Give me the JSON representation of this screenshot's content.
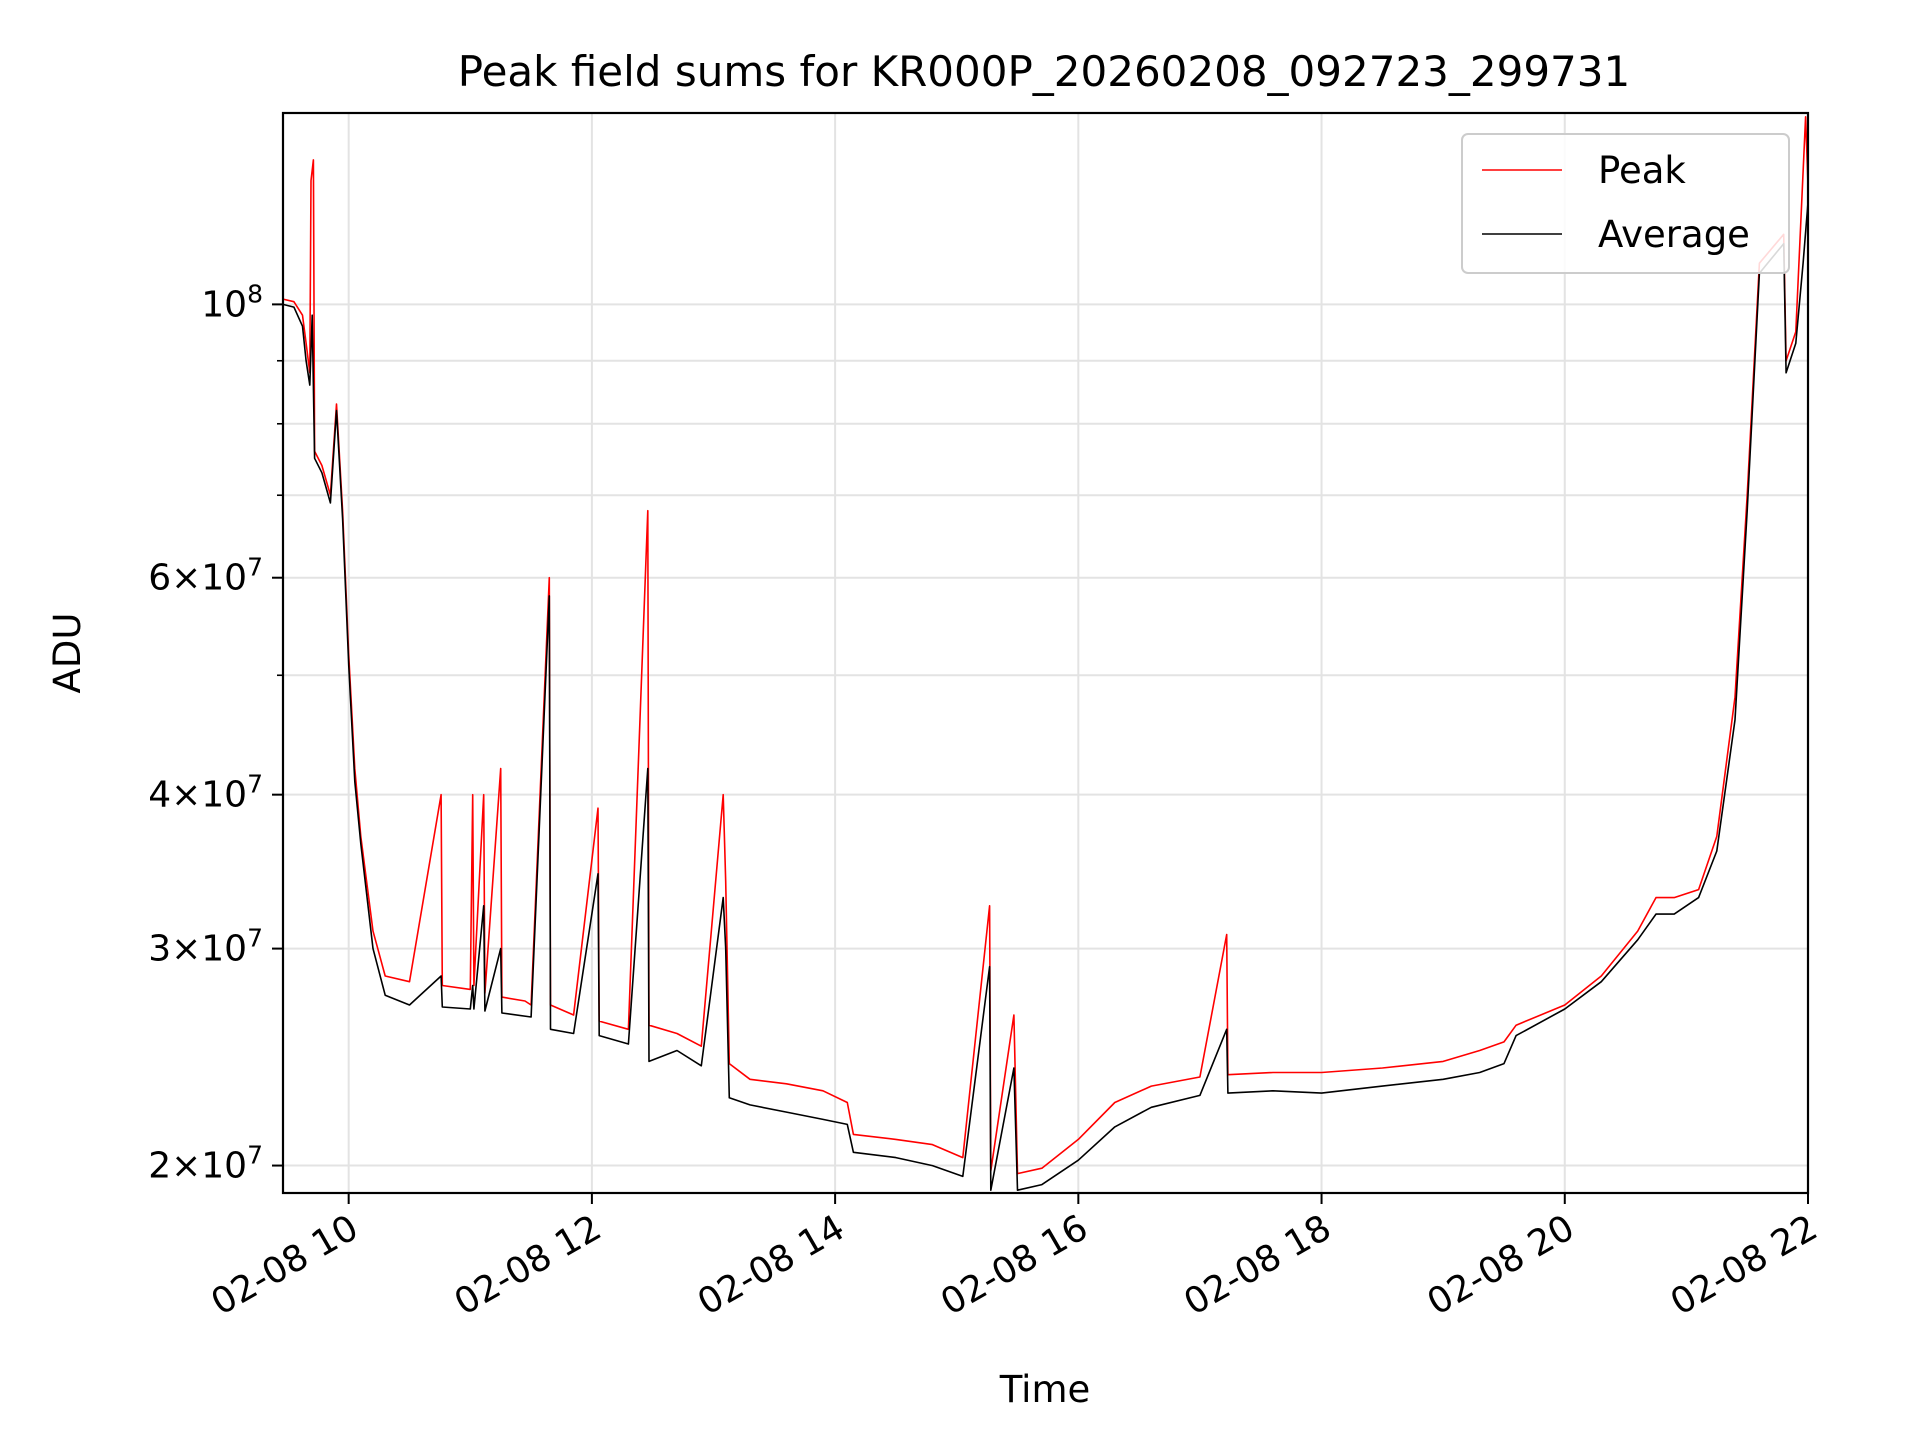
{
  "chart_data": {
    "type": "line",
    "title": "Peak field sums for KR000P_20260208_092723_299731",
    "xlabel": "Time",
    "ylabel": "ADU",
    "yscale": "log",
    "xlim": [
      9.46,
      22.0
    ],
    "ylim": [
      19000000,
      143000000
    ],
    "grid": true,
    "legend_position": "top-right",
    "x_ticks": [
      {
        "value": 10,
        "label": "02-08 10"
      },
      {
        "value": 12,
        "label": "02-08 12"
      },
      {
        "value": 14,
        "label": "02-08 14"
      },
      {
        "value": 16,
        "label": "02-08 16"
      },
      {
        "value": 18,
        "label": "02-08 18"
      },
      {
        "value": 20,
        "label": "02-08 20"
      },
      {
        "value": 22,
        "label": "02-08 22"
      }
    ],
    "y_ticks": [
      {
        "value": 20000000,
        "mant": "2",
        "exp": "7"
      },
      {
        "value": 30000000,
        "mant": "3",
        "exp": "7"
      },
      {
        "value": 40000000,
        "mant": "4",
        "exp": "7"
      },
      {
        "value": 60000000,
        "mant": "6",
        "exp": "7"
      },
      {
        "value": 100000000,
        "mant": "",
        "exp": "8"
      }
    ],
    "y_minor_ticks": [
      50000000,
      70000000,
      80000000,
      90000000
    ],
    "series": [
      {
        "name": "Peak",
        "color": "#ff0000",
        "points": [
          [
            9.46,
            101000000
          ],
          [
            9.55,
            100500000
          ],
          [
            9.62,
            98000000
          ],
          [
            9.65,
            93000000
          ],
          [
            9.68,
            88000000
          ],
          [
            9.69,
            126000000
          ],
          [
            9.71,
            131000000
          ],
          [
            9.72,
            76000000
          ],
          [
            9.78,
            74000000
          ],
          [
            9.85,
            70000000
          ],
          [
            9.9,
            83000000
          ],
          [
            9.95,
            68000000
          ],
          [
            10.0,
            52000000
          ],
          [
            10.05,
            42000000
          ],
          [
            10.1,
            37000000
          ],
          [
            10.2,
            31000000
          ],
          [
            10.3,
            28500000
          ],
          [
            10.5,
            28200000
          ],
          [
            10.76,
            40000000
          ],
          [
            10.77,
            28000000
          ],
          [
            11.0,
            27800000
          ],
          [
            11.02,
            40000000
          ],
          [
            11.03,
            28000000
          ],
          [
            11.11,
            40000000
          ],
          [
            11.12,
            27600000
          ],
          [
            11.25,
            42000000
          ],
          [
            11.26,
            27400000
          ],
          [
            11.45,
            27200000
          ],
          [
            11.5,
            27000000
          ],
          [
            11.65,
            60000000
          ],
          [
            11.66,
            27000000
          ],
          [
            11.85,
            26500000
          ],
          [
            12.05,
            39000000
          ],
          [
            12.06,
            26200000
          ],
          [
            12.3,
            25800000
          ],
          [
            12.46,
            68000000
          ],
          [
            12.47,
            26000000
          ],
          [
            12.7,
            25600000
          ],
          [
            12.9,
            25000000
          ],
          [
            13.08,
            40000000
          ],
          [
            13.1,
            34000000
          ],
          [
            13.13,
            24200000
          ],
          [
            13.3,
            23500000
          ],
          [
            13.6,
            23300000
          ],
          [
            13.9,
            23000000
          ],
          [
            14.1,
            22500000
          ],
          [
            14.15,
            21200000
          ],
          [
            14.5,
            21000000
          ],
          [
            14.8,
            20800000
          ],
          [
            15.05,
            20300000
          ],
          [
            15.27,
            32500000
          ],
          [
            15.28,
            19800000
          ],
          [
            15.47,
            26500000
          ],
          [
            15.5,
            19700000
          ],
          [
            15.7,
            19900000
          ],
          [
            16.0,
            21000000
          ],
          [
            16.3,
            22500000
          ],
          [
            16.6,
            23200000
          ],
          [
            17.0,
            23600000
          ],
          [
            17.22,
            30800000
          ],
          [
            17.23,
            23700000
          ],
          [
            17.6,
            23800000
          ],
          [
            18.0,
            23800000
          ],
          [
            18.5,
            24000000
          ],
          [
            19.0,
            24300000
          ],
          [
            19.3,
            24800000
          ],
          [
            19.5,
            25200000
          ],
          [
            19.6,
            26000000
          ],
          [
            20.0,
            27000000
          ],
          [
            20.3,
            28500000
          ],
          [
            20.6,
            31000000
          ],
          [
            20.75,
            33000000
          ],
          [
            20.9,
            33000000
          ],
          [
            21.1,
            33500000
          ],
          [
            21.25,
            37000000
          ],
          [
            21.4,
            48000000
          ],
          [
            21.5,
            70000000
          ],
          [
            21.6,
            108000000
          ],
          [
            21.8,
            114000000
          ],
          [
            21.82,
            90000000
          ],
          [
            21.9,
            95000000
          ],
          [
            21.98,
            142000000
          ],
          [
            22.0,
            125000000
          ]
        ]
      },
      {
        "name": "Average",
        "color": "#000000",
        "points": [
          [
            9.46,
            100000000
          ],
          [
            9.55,
            99500000
          ],
          [
            9.62,
            96000000
          ],
          [
            9.65,
            90000000
          ],
          [
            9.68,
            86000000
          ],
          [
            9.7,
            98000000
          ],
          [
            9.72,
            75000000
          ],
          [
            9.78,
            73000000
          ],
          [
            9.85,
            69000000
          ],
          [
            9.9,
            82000000
          ],
          [
            9.95,
            67000000
          ],
          [
            10.0,
            51000000
          ],
          [
            10.05,
            41000000
          ],
          [
            10.1,
            36500000
          ],
          [
            10.2,
            30000000
          ],
          [
            10.3,
            27500000
          ],
          [
            10.5,
            27000000
          ],
          [
            10.76,
            28500000
          ],
          [
            10.77,
            26900000
          ],
          [
            11.0,
            26800000
          ],
          [
            11.02,
            28000000
          ],
          [
            11.03,
            26800000
          ],
          [
            11.11,
            32500000
          ],
          [
            11.12,
            26700000
          ],
          [
            11.25,
            30000000
          ],
          [
            11.26,
            26600000
          ],
          [
            11.5,
            26400000
          ],
          [
            11.65,
            58000000
          ],
          [
            11.66,
            25800000
          ],
          [
            11.85,
            25600000
          ],
          [
            12.05,
            34500000
          ],
          [
            12.06,
            25500000
          ],
          [
            12.3,
            25100000
          ],
          [
            12.46,
            42000000
          ],
          [
            12.47,
            24300000
          ],
          [
            12.7,
            24800000
          ],
          [
            12.9,
            24100000
          ],
          [
            13.08,
            33000000
          ],
          [
            13.1,
            30000000
          ],
          [
            13.13,
            22700000
          ],
          [
            13.3,
            22400000
          ],
          [
            13.6,
            22100000
          ],
          [
            13.9,
            21800000
          ],
          [
            14.1,
            21600000
          ],
          [
            14.15,
            20500000
          ],
          [
            14.5,
            20300000
          ],
          [
            14.8,
            20000000
          ],
          [
            15.05,
            19600000
          ],
          [
            15.27,
            29000000
          ],
          [
            15.28,
            19100000
          ],
          [
            15.47,
            24000000
          ],
          [
            15.5,
            19100000
          ],
          [
            15.7,
            19300000
          ],
          [
            16.0,
            20200000
          ],
          [
            16.3,
            21500000
          ],
          [
            16.6,
            22300000
          ],
          [
            17.0,
            22800000
          ],
          [
            17.22,
            25800000
          ],
          [
            17.23,
            22900000
          ],
          [
            17.6,
            23000000
          ],
          [
            18.0,
            22900000
          ],
          [
            18.5,
            23200000
          ],
          [
            19.0,
            23500000
          ],
          [
            19.3,
            23800000
          ],
          [
            19.5,
            24200000
          ],
          [
            19.6,
            25500000
          ],
          [
            20.0,
            26800000
          ],
          [
            20.3,
            28200000
          ],
          [
            20.6,
            30500000
          ],
          [
            20.75,
            32000000
          ],
          [
            20.9,
            32000000
          ],
          [
            21.1,
            33000000
          ],
          [
            21.25,
            36000000
          ],
          [
            21.4,
            46000000
          ],
          [
            21.5,
            68000000
          ],
          [
            21.6,
            106000000
          ],
          [
            21.8,
            112000000
          ],
          [
            21.82,
            88000000
          ],
          [
            21.9,
            93000000
          ],
          [
            21.96,
            108000000
          ],
          [
            22.0,
            121000000
          ]
        ]
      }
    ]
  }
}
